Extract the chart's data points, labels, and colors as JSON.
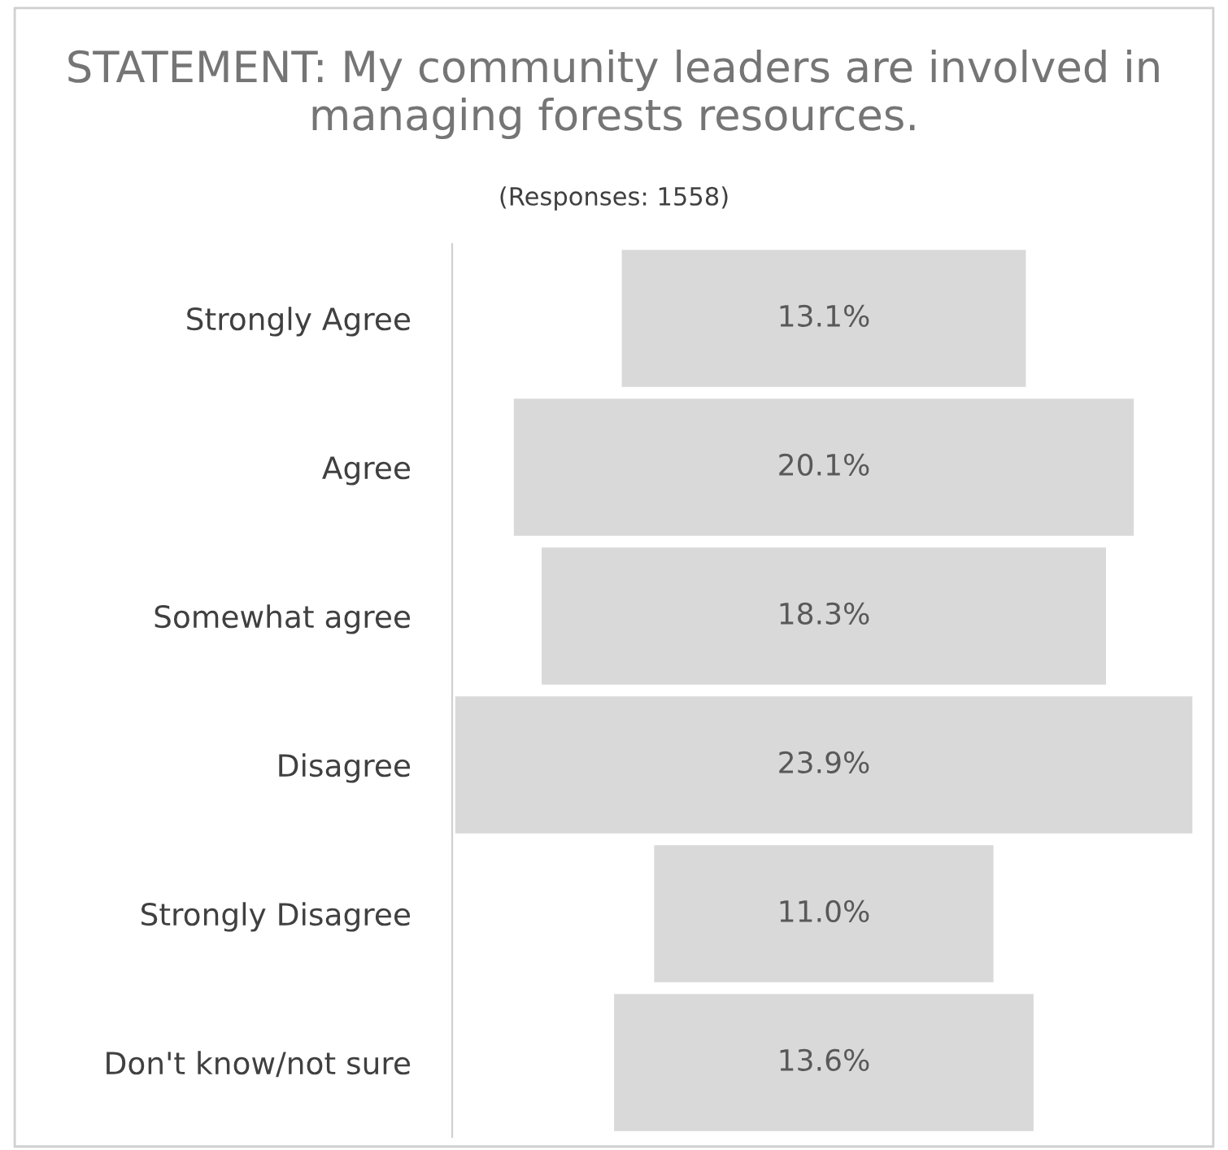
{
  "chart_data": {
    "type": "other",
    "title": "STATEMENT: My community leaders are involved in managing forests resources.",
    "subtitle": "(Responses: 1558)",
    "categories": [
      "Strongly Agree",
      "Agree",
      "Somewhat agree",
      "Disagree",
      "Strongly Disagree",
      "Don't know/not sure"
    ],
    "values": [
      13.1,
      20.1,
      18.3,
      23.9,
      11.0,
      13.6
    ],
    "value_labels": [
      "13.1%",
      "20.1%",
      "18.3%",
      "23.9%",
      "11.0%",
      "13.6%"
    ],
    "color": "#d9d9d9"
  }
}
